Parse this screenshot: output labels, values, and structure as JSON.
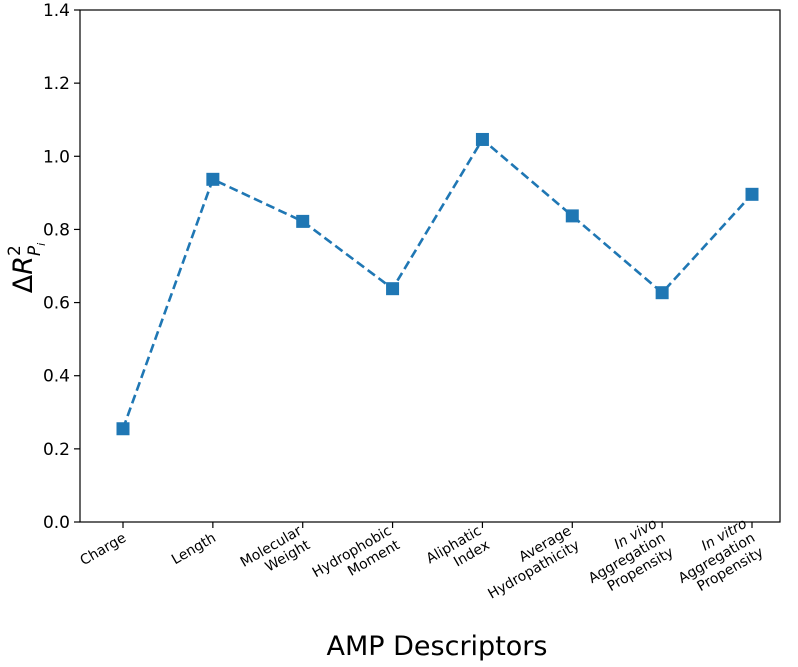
{
  "chart_data": {
    "type": "line",
    "xlabel": "AMP Descriptors",
    "ylabel": {
      "delta": "Δ",
      "base": "R",
      "sup": "2",
      "sub": "P",
      "subsub": "i"
    },
    "ylim": [
      0.0,
      1.4
    ],
    "yticks": [
      "0.0",
      "0.2",
      "0.4",
      "0.6",
      "0.8",
      "1.0",
      "1.2",
      "1.4"
    ],
    "grid": false,
    "categories": [
      {
        "lines": [
          "Charge"
        ],
        "italic_first": false
      },
      {
        "lines": [
          "Length"
        ],
        "italic_first": false
      },
      {
        "lines": [
          "Molecular",
          "Weight"
        ],
        "italic_first": false
      },
      {
        "lines": [
          "Hydrophobic",
          "Moment"
        ],
        "italic_first": false
      },
      {
        "lines": [
          "Aliphatic",
          "Index"
        ],
        "italic_first": false
      },
      {
        "lines": [
          "Average",
          "Hydropathicity"
        ],
        "italic_first": false
      },
      {
        "lines": [
          "In vivo",
          "Aggregation",
          "Propensity"
        ],
        "italic_first": true
      },
      {
        "lines": [
          "In vitro",
          "Aggregation",
          "Propensity"
        ],
        "italic_first": true
      }
    ],
    "series": [
      {
        "values": [
          0.255,
          0.937,
          0.822,
          0.638,
          1.046,
          0.837,
          0.627,
          0.896
        ],
        "color": "#1f77b4",
        "line_style": "dashed",
        "marker": "square"
      }
    ]
  }
}
